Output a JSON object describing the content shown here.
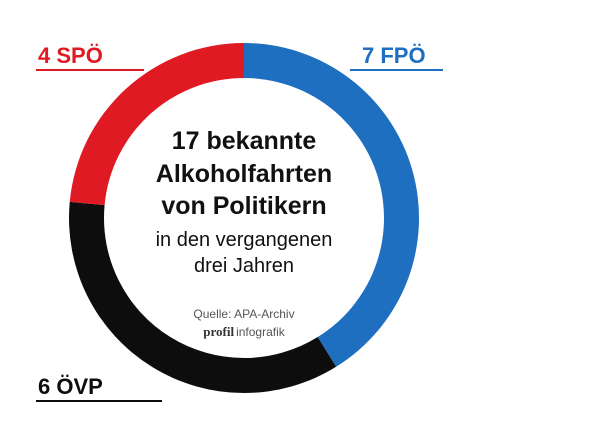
{
  "chart_data": {
    "type": "pie",
    "title": "17 bekannte Alkoholfahrten von Politikern",
    "title_lines": [
      "17 bekannte",
      "Alkoholfahrten",
      "von Politikern"
    ],
    "subtitle_lines": [
      "in den vergangenen",
      "drei Jahren"
    ],
    "source": "Quelle: APA-Archiv",
    "brand": {
      "bold": "profil",
      "rest": "infografik"
    },
    "total": 17,
    "slices": [
      {
        "name": "FPÖ",
        "value": 7,
        "label": "7 FPÖ",
        "color": "#1f6fc0"
      },
      {
        "name": "ÖVP",
        "value": 6,
        "label": "6 ÖVP",
        "color": "#0d0d0d"
      },
      {
        "name": "SPÖ",
        "value": 4,
        "label": "4 SPÖ",
        "color": "#e01a22"
      }
    ]
  }
}
